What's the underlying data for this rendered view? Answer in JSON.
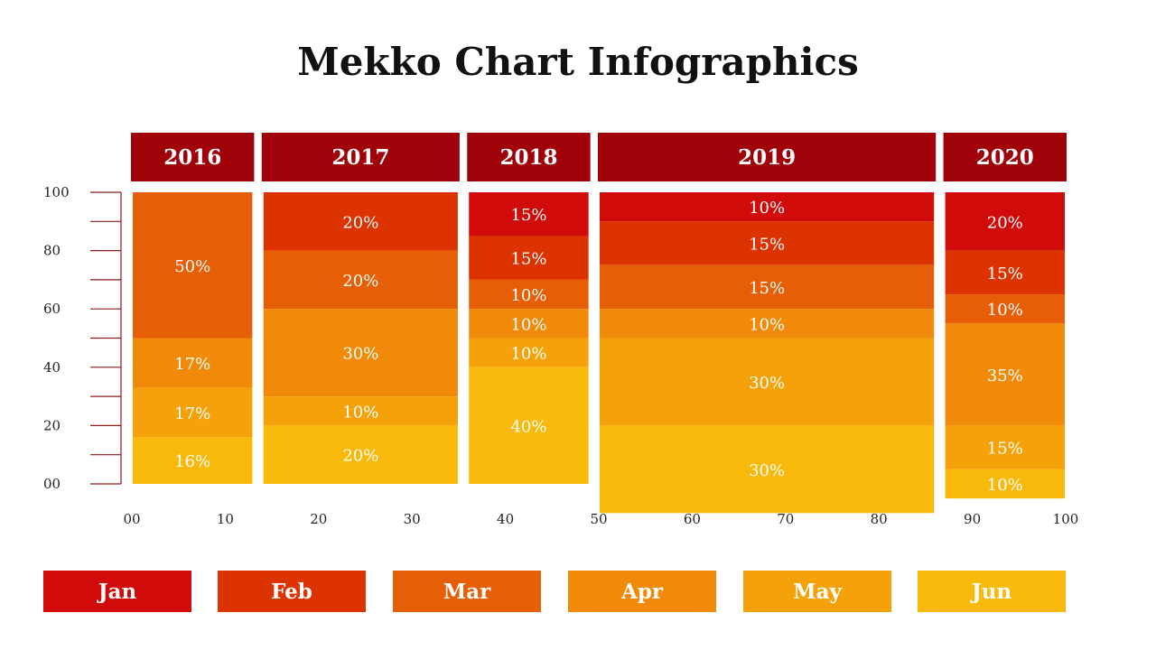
{
  "title": "Mekko Chart Infographics",
  "chart_data": {
    "type": "mekko",
    "title": "Mekko Chart Infographics",
    "series": [
      {
        "name": "Jan",
        "color": "#d10a0a"
      },
      {
        "name": "Feb",
        "color": "#dc3300"
      },
      {
        "name": "Mar",
        "color": "#e65e05"
      },
      {
        "name": "Apr",
        "color": "#f08a08"
      },
      {
        "name": "May",
        "color": "#f5a20a"
      },
      {
        "name": "Jun",
        "color": "#f8b90a"
      }
    ],
    "columns": [
      {
        "label": "2016",
        "x_start": 0,
        "x_end": 13,
        "segments": [
          {
            "series": "Mar",
            "value": 50,
            "label": "50%"
          },
          {
            "series": "Apr",
            "value": 17,
            "label": "17%"
          },
          {
            "series": "May",
            "value": 17,
            "label": "17%"
          },
          {
            "series": "Jun",
            "value": 16,
            "label": "16%"
          }
        ]
      },
      {
        "label": "2017",
        "x_start": 14,
        "x_end": 35,
        "segments": [
          {
            "series": "Feb",
            "value": 20,
            "label": "20%"
          },
          {
            "series": "Mar",
            "value": 20,
            "label": "20%"
          },
          {
            "series": "Apr",
            "value": 30,
            "label": "30%"
          },
          {
            "series": "May",
            "value": 10,
            "label": "10%"
          },
          {
            "series": "Jun",
            "value": 20,
            "label": "20%"
          }
        ]
      },
      {
        "label": "2018",
        "x_start": 36,
        "x_end": 49,
        "segments": [
          {
            "series": "Jan",
            "value": 15,
            "label": "15%"
          },
          {
            "series": "Feb",
            "value": 15,
            "label": "15%"
          },
          {
            "series": "Mar",
            "value": 10,
            "label": "10%"
          },
          {
            "series": "Apr",
            "value": 10,
            "label": "10%"
          },
          {
            "series": "May",
            "value": 10,
            "label": "10%"
          },
          {
            "series": "Jun",
            "value": 40,
            "label": "40%"
          }
        ]
      },
      {
        "label": "2019",
        "x_start": 50,
        "x_end": 86,
        "segments": [
          {
            "series": "Jan",
            "value": 10,
            "label": "10%"
          },
          {
            "series": "Feb",
            "value": 15,
            "label": "15%"
          },
          {
            "series": "Mar",
            "value": 15,
            "label": "15%"
          },
          {
            "series": "Apr",
            "value": 10,
            "label": "10%"
          },
          {
            "series": "May",
            "value": 30,
            "label": "30%"
          },
          {
            "series": "Jun",
            "value": 30,
            "label": "30%"
          }
        ]
      },
      {
        "label": "2020",
        "x_start": 87,
        "x_end": 100,
        "segments": [
          {
            "series": "Jan",
            "value": 20,
            "label": "20%"
          },
          {
            "series": "Feb",
            "value": 15,
            "label": "15%"
          },
          {
            "series": "Mar",
            "value": 10,
            "label": "10%"
          },
          {
            "series": "Apr",
            "value": 35,
            "label": "35%"
          },
          {
            "series": "May",
            "value": 15,
            "label": "15%"
          },
          {
            "series": "Jun",
            "value": 10,
            "label": "10%"
          }
        ]
      }
    ],
    "y_ticks": [
      "00",
      "20",
      "40",
      "60",
      "80",
      "100"
    ],
    "x_ticks": [
      "00",
      "10",
      "20",
      "30",
      "40",
      "50",
      "60",
      "70",
      "80",
      "90",
      "100"
    ],
    "ylim": [
      0,
      100
    ],
    "xlim": [
      0,
      100
    ],
    "header_color": "#a0020a",
    "axis_color": "#8b1a1a",
    "grid": false,
    "legend_position": "bottom"
  },
  "legend": [
    {
      "label": "Jan",
      "color": "#d10a0a"
    },
    {
      "label": "Feb",
      "color": "#dc3300"
    },
    {
      "label": "Mar",
      "color": "#e65e05"
    },
    {
      "label": "Apr",
      "color": "#f08a08"
    },
    {
      "label": "May",
      "color": "#f5a20a"
    },
    {
      "label": "Jun",
      "color": "#f8b90a"
    }
  ]
}
